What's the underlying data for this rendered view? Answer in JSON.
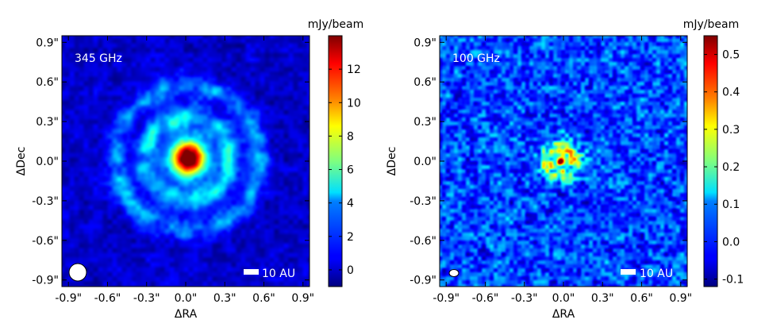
{
  "chart_data": [
    {
      "type": "heatmap",
      "frequency_label": "345 GHz",
      "xlabel": "ΔRA",
      "ylabel": "ΔDec",
      "xticks": [
        "-0.9\"",
        "-0.6\"",
        "-0.3\"",
        "0.0\"",
        "0.3\"",
        "0.6\"",
        "0.9\""
      ],
      "yticks": [
        "0.9\"",
        "0.6\"",
        "0.3\"",
        "0.0\"",
        "-0.3\"",
        "-0.6\"",
        "-0.9\""
      ],
      "xlim": [
        -0.95,
        0.95
      ],
      "ylim": [
        -0.95,
        0.95
      ],
      "colorbar": {
        "unit": "mJy/beam",
        "range": [
          -1,
          14
        ],
        "ticks": [
          "12",
          "10",
          "8",
          "6",
          "4",
          "2",
          "0"
        ],
        "tick_values": [
          12,
          10,
          8,
          6,
          4,
          2,
          0
        ]
      },
      "scale_bar_label": "10 AU",
      "beam": "circle",
      "structure": {
        "peak_value": 13.5,
        "peak_position": [
          0.02,
          0.02
        ],
        "ring_radii_arcsec": [
          0.32,
          0.55
        ],
        "ring_level": 3.5,
        "background_level": 0.5
      }
    },
    {
      "type": "heatmap",
      "frequency_label": "100 GHz",
      "xlabel": "ΔRA",
      "ylabel": "ΔDec",
      "xticks": [
        "-0.9\"",
        "-0.6\"",
        "-0.3\"",
        "0.0\"",
        "0.3\"",
        "0.6\"",
        "0.9\""
      ],
      "yticks": [
        "0.9\"",
        "0.6\"",
        "0.3\"",
        "0.0\"",
        "-0.3\"",
        "-0.6\"",
        "-0.9\""
      ],
      "xlim": [
        -0.95,
        0.95
      ],
      "ylim": [
        -0.95,
        0.95
      ],
      "colorbar": {
        "unit": "mJy/beam",
        "range": [
          -0.12,
          0.55
        ],
        "ticks": [
          "0.5",
          "0.4",
          "0.3",
          "0.2",
          "0.1",
          "0.0",
          "-0.1"
        ],
        "tick_values": [
          0.5,
          0.4,
          0.3,
          0.2,
          0.1,
          0.0,
          -0.1
        ]
      },
      "scale_bar_label": "10 AU",
      "beam": "ellipse",
      "structure": {
        "peak_value": 0.54,
        "peak_position": [
          -0.02,
          0.0
        ],
        "ring_radii_arcsec": [
          0.12
        ],
        "ring_level": 0.2,
        "background_level": 0.0
      }
    }
  ]
}
